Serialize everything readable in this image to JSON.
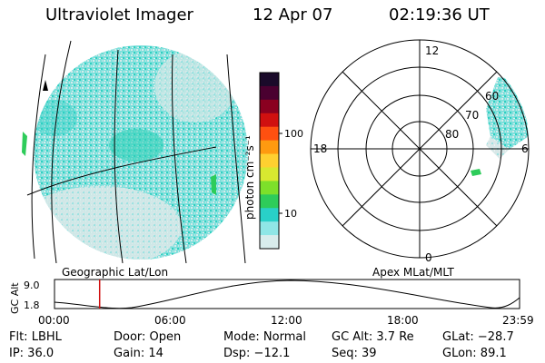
{
  "header": {
    "title": "Ultraviolet Imager",
    "date": "12 Apr 07",
    "time": "02:19:36 UT"
  },
  "left_panel": {
    "caption": "Geographic Lat/Lon"
  },
  "colorbar": {
    "label": "photon cm⁻²s⁻¹",
    "ticks": [
      "100",
      "10"
    ],
    "colors": [
      "#1a0a2a",
      "#4a0030",
      "#8a0020",
      "#d01010",
      "#ff5010",
      "#ff9a10",
      "#ffd030",
      "#d8e830",
      "#7de02a",
      "#2ecc5a",
      "#29d0c8",
      "#8fe6e6",
      "#d8ecec"
    ]
  },
  "polar_panel": {
    "caption": "Apex MLat/MLT",
    "mlt_labels": {
      "top": "12",
      "left": "18",
      "right": "6",
      "bottom": "0"
    },
    "lat_labels": [
      "60",
      "70",
      "80"
    ]
  },
  "altitude_plot": {
    "ylabel": "GC Alt",
    "y_ticks": [
      "9.0",
      "1.8"
    ],
    "x_ticks": [
      "00:00",
      "06:00",
      "12:00",
      "18:00",
      "23:59"
    ],
    "current_time_fraction": 0.097
  },
  "info": {
    "flt": "Flt: LBHL",
    "ip": "IP: 36.0",
    "door": "Door: Open",
    "gain": "Gain: 14",
    "mode": "Mode: Normal",
    "dsp": "Dsp:  −12.1",
    "gc_alt": "GC Alt: 3.7 Re",
    "seq": "Seq: 39",
    "glat": "GLat: −28.7",
    "glon": "GLon:  89.1"
  }
}
